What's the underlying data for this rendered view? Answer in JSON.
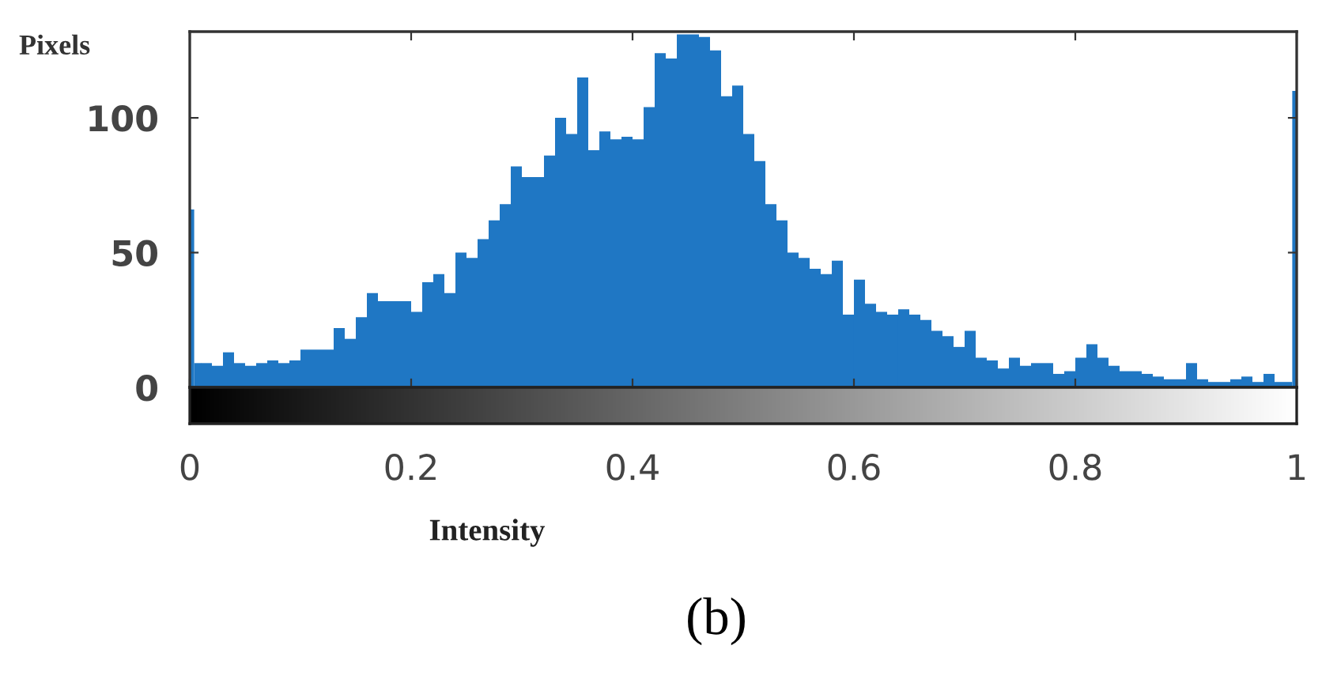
{
  "chart_data": {
    "type": "histogram",
    "ylabel": "Pixels",
    "xlabel": "Intensity",
    "annotations": [
      "(b)"
    ],
    "color": "#1f77c4",
    "bins": [
      0,
      0.004,
      0.01,
      0.02,
      0.03,
      0.04,
      0.05,
      0.06,
      0.07,
      0.08,
      0.09,
      0.1,
      0.11,
      0.12,
      0.13,
      0.14,
      0.15,
      0.16,
      0.17,
      0.18,
      0.19,
      0.2,
      0.21,
      0.22,
      0.23,
      0.24,
      0.25,
      0.26,
      0.27,
      0.28,
      0.29,
      0.3,
      0.31,
      0.32,
      0.33,
      0.34,
      0.35,
      0.36,
      0.37,
      0.38,
      0.39,
      0.4,
      0.41,
      0.42,
      0.43,
      0.44,
      0.45,
      0.46,
      0.47,
      0.48,
      0.49,
      0.5,
      0.51,
      0.52,
      0.53,
      0.54,
      0.55,
      0.56,
      0.57,
      0.58,
      0.59,
      0.6,
      0.61,
      0.62,
      0.63,
      0.64,
      0.65,
      0.66,
      0.67,
      0.68,
      0.69,
      0.7,
      0.71,
      0.72,
      0.73,
      0.74,
      0.75,
      0.76,
      0.77,
      0.78,
      0.79,
      0.8,
      0.81,
      0.82,
      0.83,
      0.84,
      0.85,
      0.86,
      0.87,
      0.88,
      0.89,
      0.9,
      0.91,
      0.92,
      0.93,
      0.94,
      0.95,
      0.96,
      0.97,
      0.98,
      0.99,
      0.996,
      1
    ],
    "values": [
      66,
      9,
      9,
      8,
      13,
      9,
      8,
      9,
      10,
      9,
      10,
      14,
      14,
      14,
      22,
      18,
      26,
      35,
      32,
      32,
      32,
      28,
      39,
      42,
      35,
      50,
      48,
      55,
      62,
      68,
      82,
      78,
      78,
      86,
      100,
      94,
      115,
      88,
      95,
      92,
      93,
      92,
      104,
      124,
      122,
      131,
      131,
      130,
      125,
      108,
      112,
      94,
      84,
      68,
      62,
      50,
      48,
      44,
      42,
      47,
      27,
      40,
      31,
      28,
      27,
      29,
      27,
      25,
      21,
      19,
      15,
      21,
      11,
      10,
      7,
      11,
      8,
      9,
      9,
      5,
      6,
      11,
      16,
      11,
      8,
      6,
      6,
      5,
      4,
      3,
      3,
      9,
      3,
      2,
      2,
      3,
      4,
      2,
      5,
      2,
      2,
      110
    ],
    "xlim": [
      0,
      1
    ],
    "ylim": [
      0,
      132
    ],
    "xticks": [
      0,
      0.2,
      0.4,
      0.6,
      0.8,
      1
    ],
    "yticks": [
      0,
      50,
      100
    ]
  }
}
